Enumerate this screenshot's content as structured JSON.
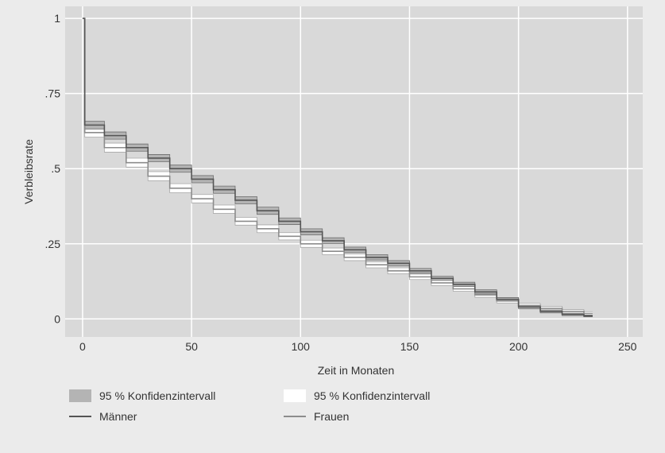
{
  "chart_data": {
    "type": "line",
    "step": true,
    "xlabel": "Zeit in Monaten",
    "ylabel": "Verbleibsrate",
    "xlim": [
      -8,
      257
    ],
    "ylim": [
      -0.06,
      1.04
    ],
    "x_ticks": [
      0,
      50,
      100,
      150,
      200,
      250
    ],
    "y_ticks": [
      0,
      0.25,
      0.5,
      0.75,
      1
    ],
    "x_tick_labels": [
      "0",
      "50",
      "100",
      "150",
      "200",
      "250"
    ],
    "y_tick_labels": [
      "0",
      ".25",
      ".5",
      ".75",
      "1"
    ],
    "grid": true,
    "legend_position": "bottom",
    "colors": {
      "plot_background": "#d9d9d9",
      "figure_background": "#ebebeb",
      "grid": "#ffffff",
      "maenner_line": "#555555",
      "maenner_band": "#b4b4b4",
      "frauen_line": "#8c8c8c",
      "frauen_band": "#ffffff"
    },
    "series": [
      {
        "name": "Männer",
        "x": [
          0,
          1,
          1,
          10,
          20,
          30,
          40,
          50,
          60,
          70,
          80,
          90,
          100,
          110,
          120,
          130,
          140,
          150,
          160,
          170,
          180,
          190,
          200,
          210,
          220,
          230,
          234
        ],
        "y": [
          1,
          1,
          0.645,
          0.61,
          0.57,
          0.535,
          0.5,
          0.465,
          0.43,
          0.395,
          0.36,
          0.325,
          0.29,
          0.26,
          0.23,
          0.205,
          0.185,
          0.16,
          0.135,
          0.115,
          0.09,
          0.065,
          0.04,
          0.025,
          0.015,
          0.01,
          0.01
        ],
        "ci_lower": [
          1,
          1,
          0.632,
          0.598,
          0.558,
          0.523,
          0.488,
          0.453,
          0.418,
          0.383,
          0.348,
          0.314,
          0.28,
          0.25,
          0.221,
          0.196,
          0.176,
          0.152,
          0.128,
          0.108,
          0.083,
          0.059,
          0.034,
          0.02,
          0.011,
          0.007,
          0.007
        ],
        "ci_upper": [
          1,
          1,
          0.658,
          0.622,
          0.582,
          0.547,
          0.512,
          0.477,
          0.442,
          0.407,
          0.372,
          0.336,
          0.3,
          0.27,
          0.239,
          0.214,
          0.194,
          0.168,
          0.142,
          0.122,
          0.097,
          0.071,
          0.046,
          0.03,
          0.019,
          0.013,
          0.013
        ]
      },
      {
        "name": "Frauen",
        "x": [
          0,
          1,
          1,
          10,
          20,
          30,
          40,
          50,
          60,
          70,
          80,
          90,
          100,
          110,
          120,
          130,
          140,
          150,
          160,
          170,
          180,
          190,
          200,
          210,
          220,
          230,
          234
        ],
        "y": [
          1,
          1,
          0.62,
          0.57,
          0.52,
          0.475,
          0.435,
          0.4,
          0.365,
          0.325,
          0.3,
          0.275,
          0.25,
          0.225,
          0.205,
          0.18,
          0.16,
          0.14,
          0.12,
          0.1,
          0.08,
          0.06,
          0.045,
          0.035,
          0.025,
          0.018,
          0.018
        ],
        "ci_lower": [
          1,
          1,
          0.605,
          0.555,
          0.505,
          0.46,
          0.42,
          0.386,
          0.351,
          0.312,
          0.287,
          0.263,
          0.238,
          0.214,
          0.194,
          0.17,
          0.15,
          0.131,
          0.111,
          0.092,
          0.072,
          0.053,
          0.038,
          0.028,
          0.019,
          0.012,
          0.012
        ],
        "ci_upper": [
          1,
          1,
          0.635,
          0.585,
          0.535,
          0.49,
          0.45,
          0.414,
          0.379,
          0.338,
          0.313,
          0.287,
          0.262,
          0.236,
          0.216,
          0.19,
          0.17,
          0.149,
          0.129,
          0.108,
          0.088,
          0.067,
          0.052,
          0.042,
          0.031,
          0.024,
          0.024
        ]
      }
    ],
    "legend": [
      {
        "label": "95 % Konfidenzintervall",
        "kind": "band",
        "series": "Männer"
      },
      {
        "label": "95 % Konfidenzintervall",
        "kind": "band",
        "series": "Frauen"
      },
      {
        "label": "Männer",
        "kind": "line",
        "series": "Männer"
      },
      {
        "label": "Frauen",
        "kind": "line",
        "series": "Frauen"
      }
    ]
  }
}
